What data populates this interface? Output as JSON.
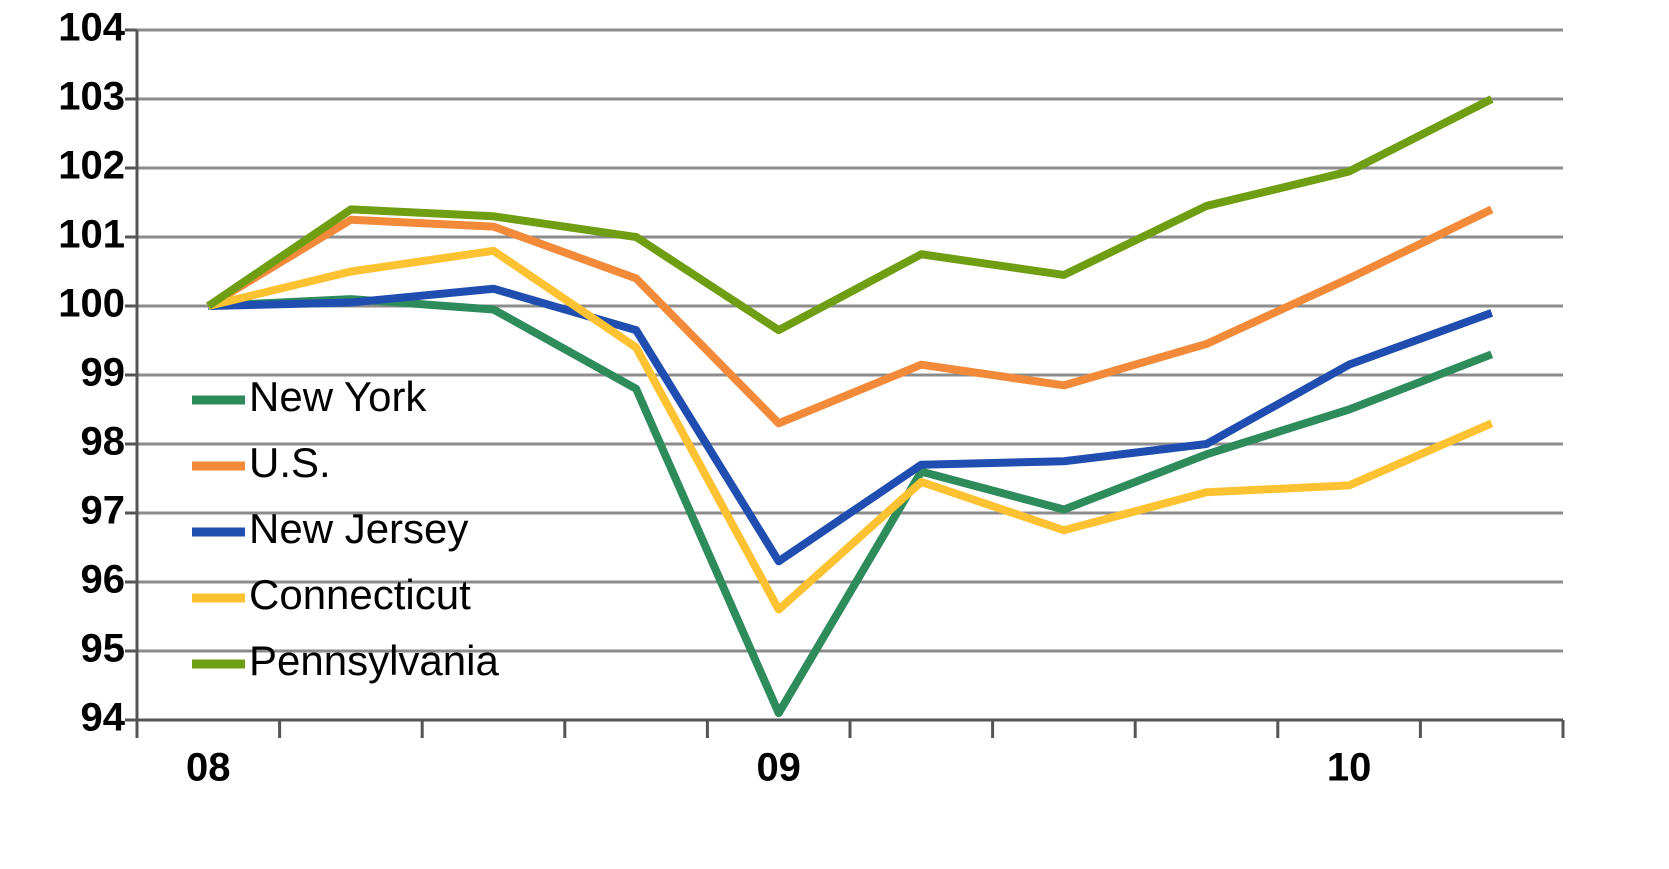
{
  "chart_data": {
    "type": "line",
    "categories": [
      "08",
      null,
      null,
      null,
      "09",
      null,
      null,
      null,
      "10",
      null
    ],
    "series": [
      {
        "name": "New York",
        "color": "#2e8b5c",
        "values": [
          100,
          100.1,
          99.95,
          98.8,
          94.1,
          97.6,
          97.05,
          97.85,
          98.5,
          99.3
        ]
      },
      {
        "name": "U.S.",
        "color": "#f28a3a",
        "values": [
          100,
          101.25,
          101.15,
          100.4,
          98.3,
          99.15,
          98.85,
          99.45,
          100.4,
          101.4
        ]
      },
      {
        "name": "New Jersey",
        "color": "#1f4eb0",
        "values": [
          100,
          100.05,
          100.25,
          99.65,
          96.3,
          97.7,
          97.75,
          98.0,
          99.15,
          99.9
        ]
      },
      {
        "name": "Connecticut",
        "color": "#fcc232",
        "values": [
          100,
          100.5,
          100.8,
          99.4,
          95.6,
          97.45,
          96.75,
          97.3,
          97.4,
          98.3
        ]
      },
      {
        "name": "Pennsylvania",
        "color": "#6f9e12",
        "values": [
          100,
          101.4,
          101.3,
          101.0,
          99.65,
          100.75,
          100.45,
          101.45,
          101.95,
          103.0
        ]
      }
    ],
    "ylim": [
      94,
      104
    ],
    "yticks": [
      94,
      95,
      96,
      97,
      98,
      99,
      100,
      101,
      102,
      103,
      104
    ],
    "grid": true,
    "legend": "left"
  }
}
